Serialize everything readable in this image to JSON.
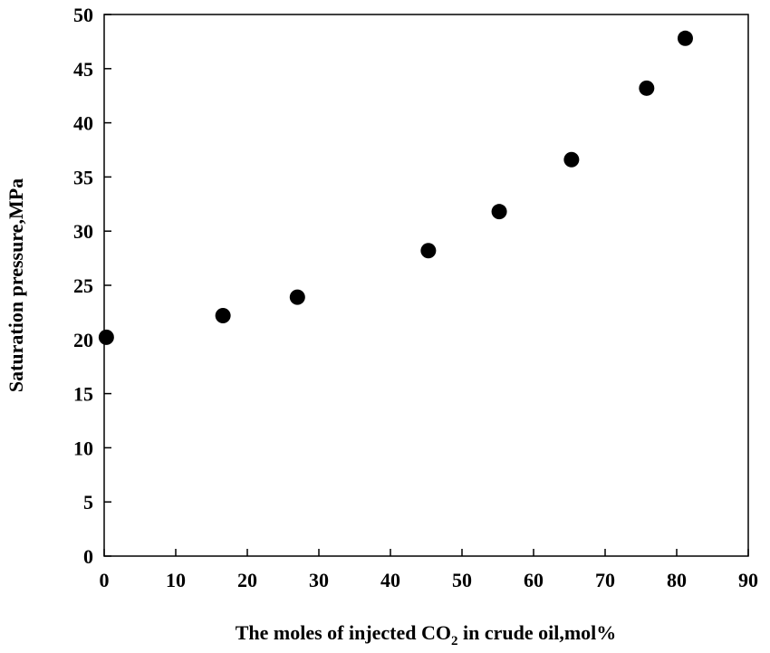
{
  "chart_data": {
    "type": "scatter",
    "title": "",
    "xlabel_parts": {
      "before": "The moles of injected CO",
      "subscript": "2",
      "after": " in crude oil,mol%"
    },
    "ylabel": "Saturation pressure,MPa",
    "xlim": [
      0,
      90
    ],
    "ylim": [
      0,
      50
    ],
    "x_ticks": [
      0,
      10,
      20,
      30,
      40,
      50,
      60,
      70,
      80,
      90
    ],
    "y_ticks": [
      0,
      5,
      10,
      15,
      20,
      25,
      30,
      35,
      40,
      45,
      50
    ],
    "grid": false,
    "legend": "none",
    "marker_color": "#000000",
    "series": [
      {
        "points": [
          {
            "x": 0.3,
            "y": 20.2
          },
          {
            "x": 16.6,
            "y": 22.2
          },
          {
            "x": 27.0,
            "y": 23.9
          },
          {
            "x": 45.3,
            "y": 28.2
          },
          {
            "x": 55.2,
            "y": 31.8
          },
          {
            "x": 65.3,
            "y": 36.6
          },
          {
            "x": 75.8,
            "y": 43.2
          },
          {
            "x": 81.2,
            "y": 47.8
          }
        ]
      }
    ]
  }
}
